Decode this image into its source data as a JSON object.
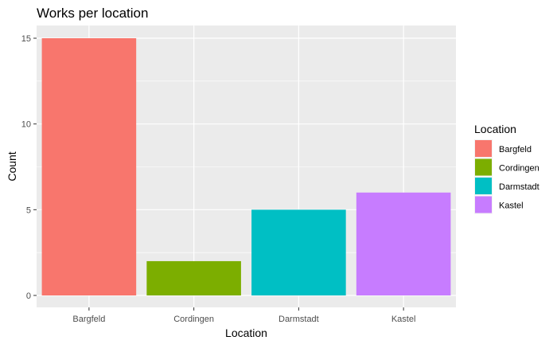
{
  "chart_data": {
    "type": "bar",
    "title": "Works per location",
    "xlabel": "Location",
    "ylabel": "Count",
    "categories": [
      "Bargfeld",
      "Cordingen",
      "Darmstadt",
      "Kastel"
    ],
    "values": [
      15,
      2,
      5,
      6
    ],
    "colors": [
      "#F8766D",
      "#7CAE00",
      "#00BFC4",
      "#C77CFF"
    ],
    "ylim": [
      0,
      15.5
    ],
    "yticks": [
      0,
      5,
      10,
      15
    ],
    "grid": true,
    "legend": {
      "title": "Location",
      "placement": "right",
      "entries": [
        "Bargfeld",
        "Cordingen",
        "Darmstadt",
        "Kastel"
      ]
    }
  }
}
